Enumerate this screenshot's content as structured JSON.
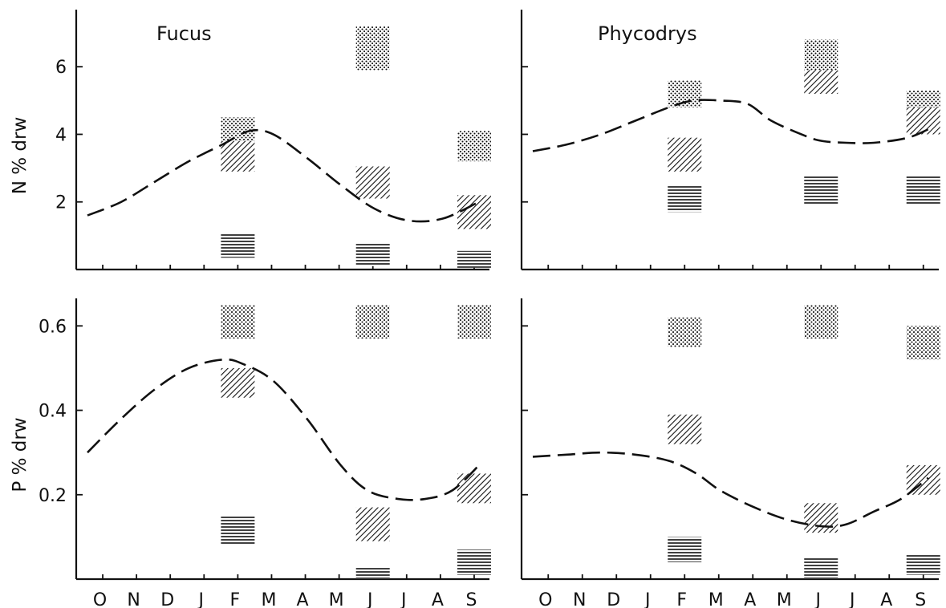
{
  "chart_data": [
    {
      "panel": "top-left",
      "type": "scatter",
      "title": "Fucus",
      "ylabel": "N % drw",
      "xlabel": "",
      "categories": [
        "O",
        "N",
        "D",
        "J",
        "F",
        "M",
        "A",
        "M",
        "J",
        "J",
        "A",
        "S"
      ],
      "ylim": [
        0,
        7.5
      ],
      "yticks": [
        2,
        4,
        6
      ],
      "yticklabels": [
        "2",
        "4",
        "6"
      ],
      "bars": [
        {
          "month": 4,
          "pattern": "dots",
          "low": 3.7,
          "high": 4.5
        },
        {
          "month": 4,
          "pattern": "diagonal",
          "low": 2.9,
          "high": 3.8
        },
        {
          "month": 4,
          "pattern": "horizontal",
          "low": 0.35,
          "high": 1.05
        },
        {
          "month": 8,
          "pattern": "dots",
          "low": 5.9,
          "high": 7.2
        },
        {
          "month": 8,
          "pattern": "diagonal",
          "low": 2.1,
          "high": 3.05
        },
        {
          "month": 8,
          "pattern": "horizontal",
          "low": 0.1,
          "high": 0.8
        },
        {
          "month": 11,
          "pattern": "dots",
          "low": 3.2,
          "high": 4.1
        },
        {
          "month": 11,
          "pattern": "diagonal",
          "low": 1.2,
          "high": 2.2
        },
        {
          "month": 11,
          "pattern": "horizontal",
          "low": 0.05,
          "high": 0.55
        }
      ],
      "trend": {
        "x": [
          0,
          1,
          2,
          3,
          4,
          4.8,
          5.5,
          6.5,
          7.5,
          8.5,
          9.5,
          10.5,
          11.5
        ],
        "y": [
          1.6,
          2.0,
          2.6,
          3.2,
          3.7,
          4.1,
          4.0,
          3.3,
          2.5,
          1.8,
          1.45,
          1.5,
          1.95
        ]
      }
    },
    {
      "panel": "top-right",
      "type": "scatter",
      "title": "Phycodrys",
      "ylabel": "",
      "xlabel": "",
      "categories": [
        "O",
        "N",
        "D",
        "J",
        "F",
        "M",
        "A",
        "M",
        "J",
        "J",
        "A",
        "S"
      ],
      "ylim": [
        0,
        7.5
      ],
      "yticks": [
        2,
        4,
        6
      ],
      "yticklabels": [
        "",
        "",
        ""
      ],
      "bars": [
        {
          "month": 4,
          "pattern": "dots",
          "low": 4.8,
          "high": 5.6
        },
        {
          "month": 4,
          "pattern": "diagonal",
          "low": 2.9,
          "high": 3.9
        },
        {
          "month": 4,
          "pattern": "horizontal",
          "low": 1.7,
          "high": 2.5
        },
        {
          "month": 8,
          "pattern": "dots",
          "low": 5.7,
          "high": 6.8
        },
        {
          "month": 8,
          "pattern": "diagonal",
          "low": 5.2,
          "high": 5.9
        },
        {
          "month": 8,
          "pattern": "horizontal",
          "low": 1.9,
          "high": 2.8
        },
        {
          "month": 11,
          "pattern": "dots",
          "low": 4.6,
          "high": 5.3
        },
        {
          "month": 11,
          "pattern": "diagonal",
          "low": 4.0,
          "high": 4.8
        },
        {
          "month": 11,
          "pattern": "horizontal",
          "low": 1.9,
          "high": 2.8
        }
      ],
      "trend": {
        "x": [
          0,
          1,
          2,
          3,
          4,
          4.7,
          5.5,
          6.3,
          7,
          8,
          8.5,
          9.2,
          10,
          11,
          11.7
        ],
        "y": [
          3.5,
          3.7,
          4.0,
          4.4,
          4.8,
          5.0,
          5.0,
          4.9,
          4.4,
          3.95,
          3.8,
          3.75,
          3.75,
          3.9,
          4.2
        ]
      }
    },
    {
      "panel": "bottom-left",
      "type": "scatter",
      "title": "",
      "ylabel": "P % drw",
      "xlabel": "",
      "categories": [
        "O",
        "N",
        "D",
        "J",
        "F",
        "M",
        "A",
        "M",
        "J",
        "J",
        "A",
        "S"
      ],
      "ylim": [
        0,
        0.65
      ],
      "yticks": [
        0.2,
        0.4,
        0.6
      ],
      "yticklabels": [
        "0.2",
        "0.4",
        "0.6"
      ],
      "bars": [
        {
          "month": 4,
          "pattern": "dots",
          "low": 0.57,
          "high": 0.65
        },
        {
          "month": 4,
          "pattern": "diagonal",
          "low": 0.43,
          "high": 0.5
        },
        {
          "month": 4,
          "pattern": "horizontal",
          "low": 0.08,
          "high": 0.15
        },
        {
          "month": 8,
          "pattern": "dots",
          "low": 0.57,
          "high": 0.65
        },
        {
          "month": 8,
          "pattern": "diagonal",
          "low": 0.09,
          "high": 0.17
        },
        {
          "month": 8,
          "pattern": "horizontal",
          "low": 0.0,
          "high": 0.03
        },
        {
          "month": 11,
          "pattern": "dots",
          "low": 0.57,
          "high": 0.65
        },
        {
          "month": 11,
          "pattern": "diagonal",
          "low": 0.18,
          "high": 0.25
        },
        {
          "month": 11,
          "pattern": "horizontal",
          "low": 0.01,
          "high": 0.07
        }
      ],
      "trend": {
        "x": [
          0,
          1,
          2,
          3,
          4,
          4.6,
          5.5,
          6.5,
          7.5,
          8.3,
          9.2,
          10,
          10.8,
          11.6
        ],
        "y": [
          0.3,
          0.38,
          0.45,
          0.5,
          0.52,
          0.51,
          0.47,
          0.38,
          0.27,
          0.21,
          0.19,
          0.19,
          0.21,
          0.27
        ]
      }
    },
    {
      "panel": "bottom-right",
      "type": "scatter",
      "title": "",
      "ylabel": "",
      "xlabel": "",
      "categories": [
        "O",
        "N",
        "D",
        "J",
        "F",
        "M",
        "A",
        "M",
        "J",
        "J",
        "A",
        "S"
      ],
      "ylim": [
        0,
        0.65
      ],
      "yticks": [
        0.2,
        0.4,
        0.6
      ],
      "yticklabels": [
        "",
        "",
        ""
      ],
      "bars": [
        {
          "month": 4,
          "pattern": "dots",
          "low": 0.55,
          "high": 0.62
        },
        {
          "month": 4,
          "pattern": "diagonal",
          "low": 0.32,
          "high": 0.39
        },
        {
          "month": 4,
          "pattern": "horizontal",
          "low": 0.04,
          "high": 0.1
        },
        {
          "month": 8,
          "pattern": "dots",
          "low": 0.57,
          "high": 0.65
        },
        {
          "month": 8,
          "pattern": "diagonal",
          "low": 0.11,
          "high": 0.18
        },
        {
          "month": 8,
          "pattern": "horizontal",
          "low": 0.0,
          "high": 0.05
        },
        {
          "month": 11,
          "pattern": "dots",
          "low": 0.52,
          "high": 0.6
        },
        {
          "month": 11,
          "pattern": "diagonal",
          "low": 0.2,
          "high": 0.27
        },
        {
          "month": 11,
          "pattern": "horizontal",
          "low": 0.01,
          "high": 0.06
        }
      ],
      "trend": {
        "x": [
          0,
          1,
          2,
          3,
          4,
          4.8,
          5.5,
          6.5,
          7.5,
          8.5,
          9.2,
          10,
          10.8,
          11.6
        ],
        "y": [
          0.29,
          0.295,
          0.3,
          0.295,
          0.28,
          0.25,
          0.21,
          0.17,
          0.14,
          0.125,
          0.13,
          0.16,
          0.19,
          0.24
        ]
      }
    }
  ]
}
